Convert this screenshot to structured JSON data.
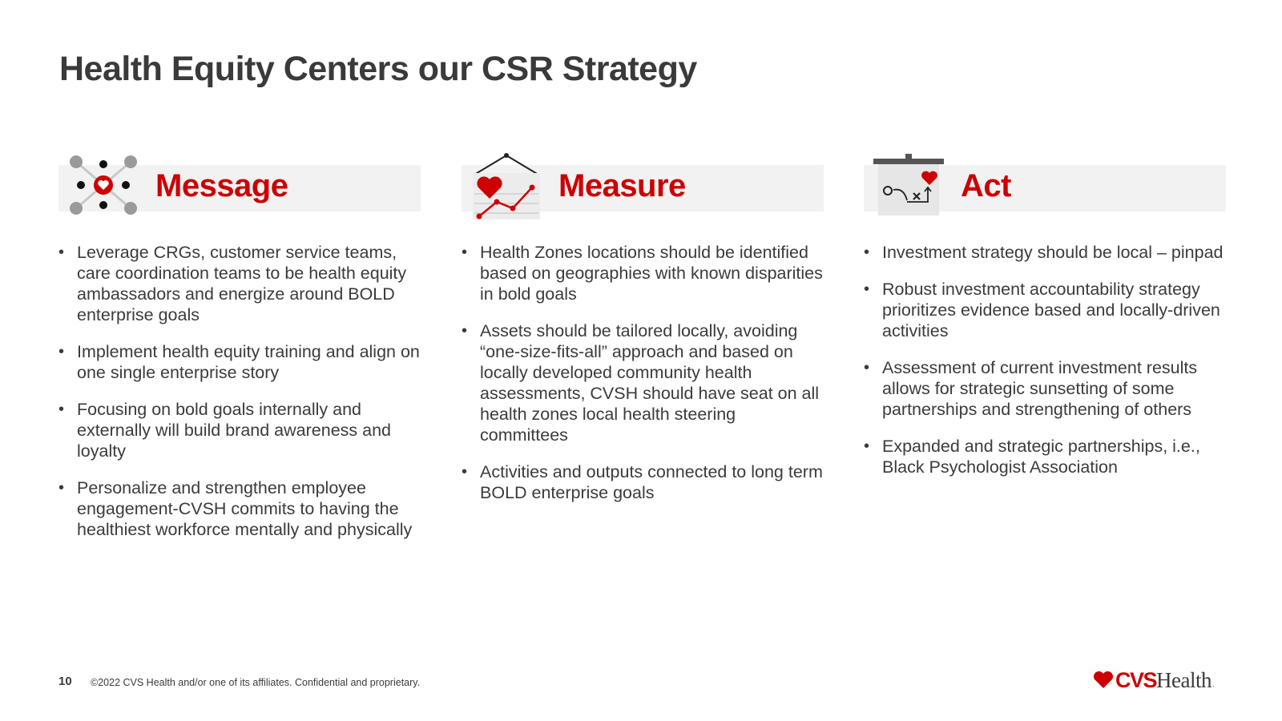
{
  "slide": {
    "title": "Health Equity Centers our CSR Strategy",
    "columns": [
      {
        "heading": "Message",
        "icon": "network-heart-icon",
        "bullets": [
          "Leverage CRGs, customer service teams, care coordination teams to be health equity ambassadors and energize around BOLD enterprise goals",
          "Implement health equity training and align on one single enterprise story",
          "Focusing on bold goals internally and externally will build brand awareness and loyalty",
          "Personalize and strengthen employee engagement-CVSH commits to having the healthiest workforce mentally and physically"
        ]
      },
      {
        "heading": "Measure",
        "icon": "heart-chart-icon",
        "bullets": [
          "Health Zones locations should be identified based on geographies with known disparities in bold goals",
          "Assets should be tailored locally, avoiding “one-size-fits-all” approach and based on locally developed community health assessments, CVSH should have seat on all health zones local health steering committees",
          "Activities and outputs connected to long term BOLD enterprise goals"
        ]
      },
      {
        "heading": "Act",
        "icon": "strategy-board-icon",
        "bullets": [
          "Investment strategy should be local – pinpad",
          "Robust investment accountability strategy prioritizes evidence based and locally-driven activities",
          "Assessment of current investment results allows for strategic sunsetting of some partnerships and strengthening of others",
          "Expanded and strategic partnerships, i.e., Black Psychologist Association"
        ]
      }
    ]
  },
  "footer": {
    "page_number": "10",
    "copyright": "©2022 CVS Health and/or one of its affiliates. Confidential and proprietary.",
    "logo_cvs": "CVS",
    "logo_health": "Health",
    "logo_dot": "."
  },
  "colors": {
    "accent": "#cc0000",
    "text": "#3b3b3b",
    "band": "#f2f2f2"
  }
}
